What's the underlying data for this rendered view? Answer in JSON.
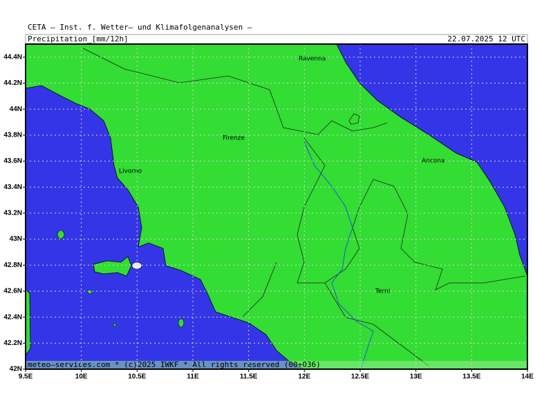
{
  "header": {
    "title": "CETA — Inst. f. Wetter— und Klimafolgenanalysen —",
    "parameter": "Precipitation_[mm/12h]",
    "valid_time": "22.07.2025 12 UTC"
  },
  "map": {
    "lon_range": [
      9.5,
      14
    ],
    "lat_range": [
      42,
      44.5
    ],
    "lon_ticks": [
      {
        "value": 9.5,
        "label": "9.5E"
      },
      {
        "value": 10,
        "label": "10E"
      },
      {
        "value": 10.5,
        "label": "10.5E"
      },
      {
        "value": 11,
        "label": "11E"
      },
      {
        "value": 11.5,
        "label": "11.5E"
      },
      {
        "value": 12,
        "label": "12E"
      },
      {
        "value": 12.5,
        "label": "12.5E"
      },
      {
        "value": 13,
        "label": "13E"
      },
      {
        "value": 13.5,
        "label": "13.5E"
      },
      {
        "value": 14,
        "label": "14E"
      }
    ],
    "lat_ticks": [
      {
        "value": 42,
        "label": "42N"
      },
      {
        "value": 42.2,
        "label": "42.2N"
      },
      {
        "value": 42.4,
        "label": "42.4N"
      },
      {
        "value": 42.6,
        "label": "42.6N"
      },
      {
        "value": 42.8,
        "label": "42.8N"
      },
      {
        "value": 43,
        "label": "43N"
      },
      {
        "value": 43.2,
        "label": "43.2N"
      },
      {
        "value": 43.4,
        "label": "43.4N"
      },
      {
        "value": 43.6,
        "label": "43.6N"
      },
      {
        "value": 43.8,
        "label": "43.8N"
      },
      {
        "value": 44,
        "label": "44N"
      },
      {
        "value": 44.2,
        "label": "44.2N"
      },
      {
        "value": 44.4,
        "label": "44.4N"
      }
    ],
    "cities": [
      "Ravenna",
      "Firenze",
      "Livorno",
      "Ancona",
      "Terni"
    ]
  },
  "footer": "meteo—services.com * (c)2025 IWKF * All rights reserved (00+036)"
}
